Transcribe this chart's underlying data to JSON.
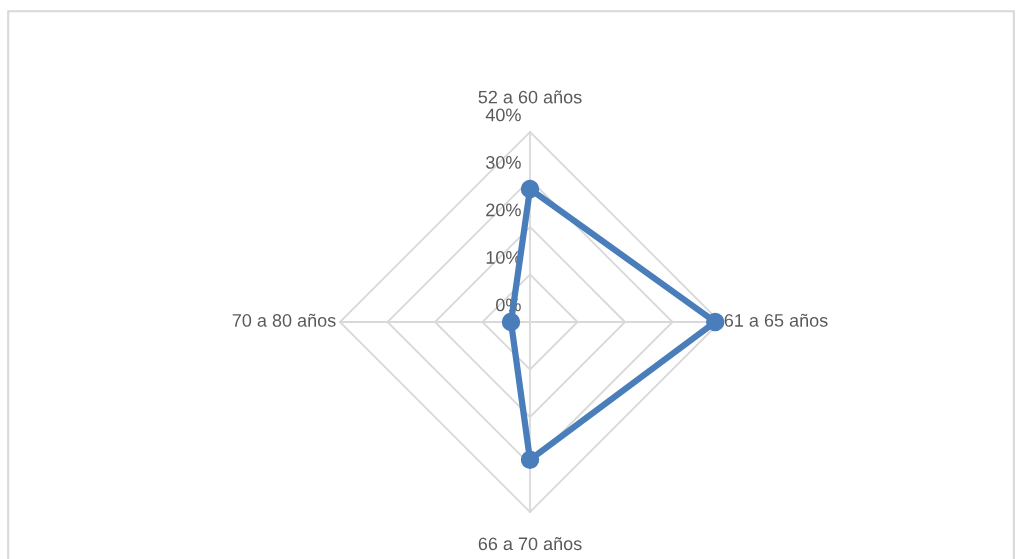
{
  "chart_data": {
    "type": "radar",
    "categories": [
      "52 a 60 años",
      "61 a 65 años",
      "66 a 70 años",
      "70 a 80 años"
    ],
    "series": [
      {
        "color": "#4a7ebb",
        "values": [
          28,
          39,
          29,
          4
        ]
      }
    ],
    "ylim": [
      0,
      40
    ],
    "yticks": [
      {
        "value": 0,
        "label": "0%"
      },
      {
        "value": 10,
        "label": "10%"
      },
      {
        "value": 20,
        "label": "20%"
      },
      {
        "value": 30,
        "label": "30%"
      },
      {
        "value": 40,
        "label": "40%"
      }
    ],
    "grid": true,
    "marker": "circle",
    "line_style": "solid"
  }
}
